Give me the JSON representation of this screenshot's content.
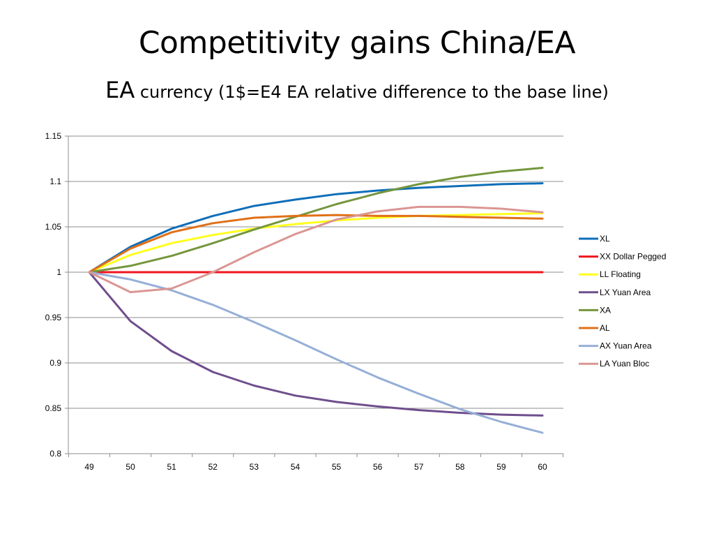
{
  "title": "Competitivity gains China/EA",
  "subtitle_prefix": "EA",
  "subtitle_rest": " currency (1$=E4 EA relative difference to the base line)",
  "chart_data": {
    "type": "line",
    "x": [
      49,
      50,
      51,
      52,
      53,
      54,
      55,
      56,
      57,
      58,
      59,
      60
    ],
    "ylim": [
      0.8,
      1.15
    ],
    "yticks": [
      "0.8",
      "0.85",
      "0.9",
      "0.95",
      "1",
      "1.05",
      "1.1",
      "1.15"
    ],
    "yticks_values": [
      0.8,
      0.85,
      0.9,
      0.95,
      1.0,
      1.05,
      1.1,
      1.15
    ],
    "xlabel": "",
    "ylabel": "",
    "grid": true,
    "legend_position": "right",
    "series": [
      {
        "name": "XL",
        "color": "#0E6EB8",
        "values": [
          1.0,
          1.028,
          1.048,
          1.062,
          1.073,
          1.08,
          1.086,
          1.09,
          1.093,
          1.095,
          1.097,
          1.098
        ]
      },
      {
        "name": "XX Dollar Pegged",
        "color": "#F0141E",
        "values": [
          1.0,
          1.0,
          1.0,
          1.0,
          1.0,
          1.0,
          1.0,
          1.0,
          1.0,
          1.0,
          1.0,
          1.0
        ]
      },
      {
        "name": "LL Floating",
        "color": "#FFFF1E",
        "values": [
          1.0,
          1.019,
          1.032,
          1.041,
          1.048,
          1.053,
          1.057,
          1.06,
          1.062,
          1.063,
          1.064,
          1.065
        ]
      },
      {
        "name": "LX Yuan Area",
        "color": "#6E4E8C",
        "values": [
          1.0,
          0.946,
          0.913,
          0.89,
          0.875,
          0.864,
          0.857,
          0.852,
          0.848,
          0.845,
          0.843,
          0.842
        ]
      },
      {
        "name": "XA",
        "color": "#74963C",
        "values": [
          1.0,
          1.007,
          1.018,
          1.032,
          1.047,
          1.061,
          1.075,
          1.087,
          1.097,
          1.105,
          1.111,
          1.115
        ]
      },
      {
        "name": "AL",
        "color": "#E07018",
        "values": [
          1.0,
          1.026,
          1.044,
          1.054,
          1.06,
          1.062,
          1.063,
          1.062,
          1.062,
          1.061,
          1.06,
          1.059
        ]
      },
      {
        "name": "AX Yuan Area",
        "color": "#96AFD7",
        "values": [
          1.0,
          0.992,
          0.98,
          0.964,
          0.945,
          0.925,
          0.904,
          0.884,
          0.866,
          0.849,
          0.835,
          0.823
        ]
      },
      {
        "name": "LA Yuan Bloc",
        "color": "#DA9693",
        "values": [
          1.0,
          0.978,
          0.982,
          1.0,
          1.022,
          1.042,
          1.058,
          1.067,
          1.072,
          1.072,
          1.07,
          1.066
        ]
      }
    ]
  }
}
